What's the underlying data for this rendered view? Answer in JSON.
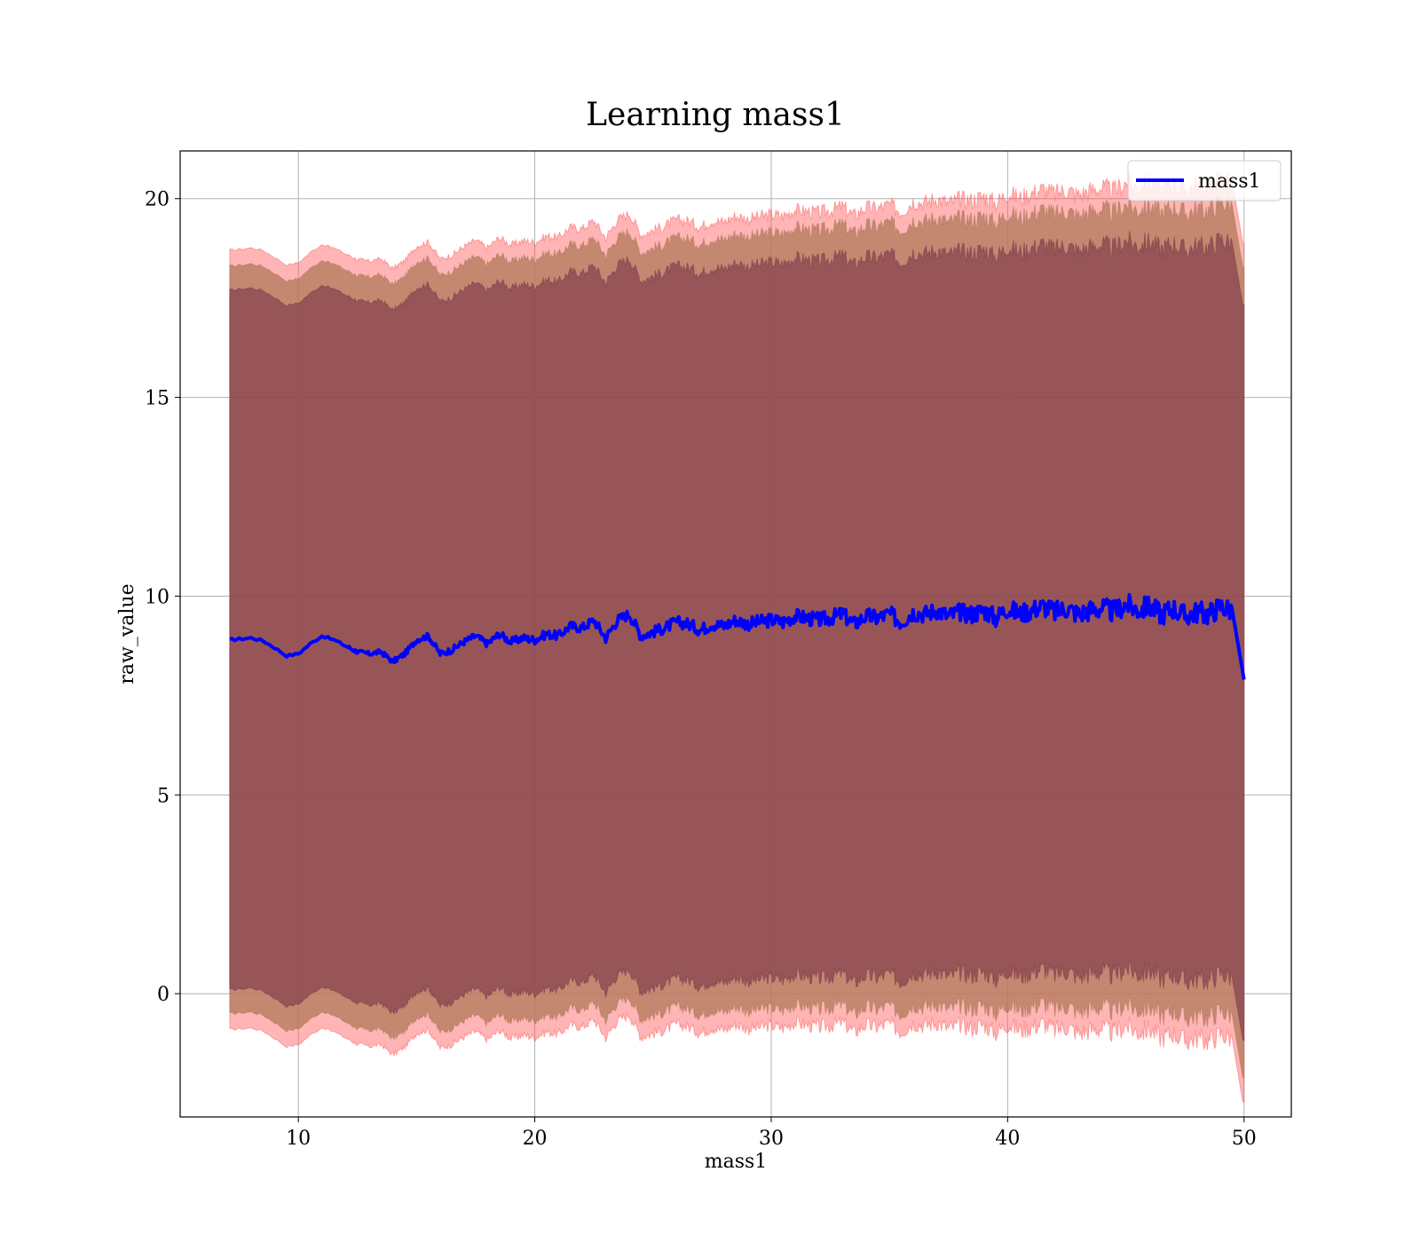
{
  "chart_data": {
    "type": "line",
    "title": "Learning mass1",
    "xlabel": "mass1",
    "ylabel": "raw_value",
    "xlim": [
      5.0,
      52.0
    ],
    "ylim": [
      -3.1,
      21.2
    ],
    "x_ticks": [
      10,
      20,
      30,
      40,
      50
    ],
    "y_ticks": [
      0,
      5,
      10,
      15,
      20
    ],
    "grid": true,
    "legend": {
      "placement": "top-right",
      "entries": [
        "mass1"
      ]
    },
    "colors": {
      "line": "#0000ff",
      "outer_band": "#ff5a5a",
      "middle_band": "#b0785a",
      "inner_band": "#7a3347",
      "grid": "#b0b0b0"
    },
    "series": [
      {
        "name": "mass1",
        "x": [
          7.1,
          7.5,
          8.0,
          8.5,
          9.0,
          9.5,
          10.0,
          10.5,
          11.0,
          11.5,
          12.0,
          12.5,
          13.0,
          13.5,
          14.0,
          14.5,
          15.0,
          15.5,
          16.0,
          16.5,
          17.0,
          17.5,
          18.0,
          18.5,
          19.0,
          19.5,
          20.0,
          20.5,
          21.0,
          21.5,
          22.0,
          22.5,
          23.0,
          23.5,
          24.0,
          24.5,
          25.0,
          25.5,
          26.0,
          26.5,
          27.0,
          27.5,
          28.0,
          28.5,
          29.0,
          29.5,
          30.0,
          30.5,
          31.0,
          31.5,
          32.0,
          32.5,
          33.0,
          33.5,
          34.0,
          34.5,
          35.0,
          35.5,
          36.0,
          36.5,
          37.0,
          37.5,
          38.0,
          38.5,
          39.0,
          39.5,
          40.0,
          40.5,
          41.0,
          41.5,
          42.0,
          42.5,
          43.0,
          43.5,
          44.0,
          44.5,
          45.0,
          45.5,
          46.0,
          46.5,
          47.0,
          47.5,
          48.0,
          48.5,
          49.0,
          49.5,
          50.0
        ],
        "y": [
          8.9,
          8.92,
          8.95,
          8.88,
          8.7,
          8.5,
          8.55,
          8.8,
          9.0,
          8.9,
          8.75,
          8.6,
          8.55,
          8.6,
          8.35,
          8.55,
          8.9,
          9.0,
          8.55,
          8.65,
          8.85,
          9.0,
          8.8,
          9.05,
          8.85,
          8.95,
          8.9,
          9.05,
          9.0,
          9.25,
          9.2,
          9.4,
          8.95,
          9.4,
          9.55,
          9.0,
          9.1,
          9.2,
          9.35,
          9.3,
          9.15,
          9.3,
          9.25,
          9.4,
          9.3,
          9.35,
          9.4,
          9.35,
          9.5,
          9.45,
          9.4,
          9.45,
          9.55,
          9.3,
          9.5,
          9.45,
          9.55,
          9.35,
          9.6,
          9.55,
          9.65,
          9.5,
          9.6,
          9.55,
          9.65,
          9.45,
          9.7,
          9.55,
          9.65,
          9.75,
          9.6,
          9.7,
          9.55,
          9.65,
          9.7,
          9.6,
          9.8,
          9.65,
          9.75,
          9.55,
          9.7,
          9.5,
          9.6,
          9.55,
          9.75,
          9.65,
          7.9
        ]
      }
    ],
    "bands": [
      {
        "layer": "outer",
        "half_width": [
          9.8,
          9.9,
          10.1,
          10.3,
          10.6,
          10.8
        ]
      },
      {
        "layer": "middle",
        "half_width": [
          9.4,
          9.5,
          9.65,
          9.85,
          10.05,
          10.2
        ]
      },
      {
        "layer": "inner",
        "half_width": [
          8.8,
          8.85,
          8.95,
          9.05,
          9.15,
          9.25
        ]
      }
    ],
    "band_anchor_x": [
      7.1,
      15.0,
      25.0,
      35.0,
      45.0,
      50.0
    ]
  }
}
